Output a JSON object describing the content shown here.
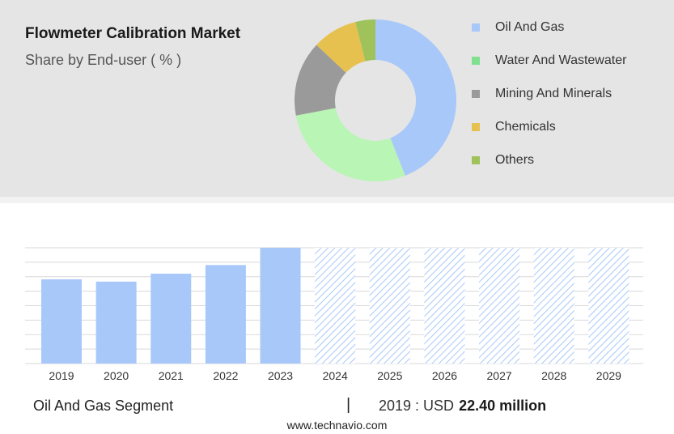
{
  "header": {
    "title": "Flowmeter Calibration Market",
    "subtitle": "Share by End-user ( % )"
  },
  "chart_data": [
    {
      "type": "pie",
      "variant": "donut",
      "title": "Flowmeter Calibration Market",
      "subtitle": "Share by End-user ( % )",
      "legend_position": "right",
      "slices": [
        {
          "label": "Oil And Gas",
          "value": 44,
          "color": "#a8c8fa"
        },
        {
          "label": "Water And Wastewater",
          "value": 28,
          "color": "#b9f5b4"
        },
        {
          "label": "Mining And Minerals",
          "value": 15,
          "color": "#9a9a9a"
        },
        {
          "label": "Chemicals",
          "value": 9,
          "color": "#e6c14f"
        },
        {
          "label": "Others",
          "value": 4,
          "color": "#9fc25b"
        }
      ]
    },
    {
      "type": "bar",
      "categories": [
        "2019",
        "2020",
        "2021",
        "2022",
        "2023",
        "2024",
        "2025",
        "2026",
        "2027",
        "2028",
        "2029"
      ],
      "values": [
        22.4,
        21.8,
        23.9,
        26.2,
        30.8,
        null,
        null,
        null,
        null,
        null,
        null
      ],
      "forecast_categories": [
        "2024",
        "2025",
        "2026",
        "2027",
        "2028",
        "2029"
      ],
      "forecast_pattern": "hatched",
      "bar_color": "#a8c8fa",
      "ylim": [
        0,
        30.8
      ],
      "grid": true,
      "xlabel": "",
      "ylabel": ""
    }
  ],
  "legend": {
    "items": [
      {
        "label": "Oil And Gas",
        "color": "#a8c8fa"
      },
      {
        "label": "Water And Wastewater",
        "color": "#7fe08f"
      },
      {
        "label": "Mining And Minerals",
        "color": "#9a9a9a"
      },
      {
        "label": "Chemicals",
        "color": "#e6c14f"
      },
      {
        "label": "Others",
        "color": "#9fc25b"
      }
    ]
  },
  "footer": {
    "segment": "Oil And Gas Segment",
    "separator": "|",
    "year_text": "2019 : USD",
    "value_text": "22.40 million",
    "website": "www.technavio.com"
  }
}
